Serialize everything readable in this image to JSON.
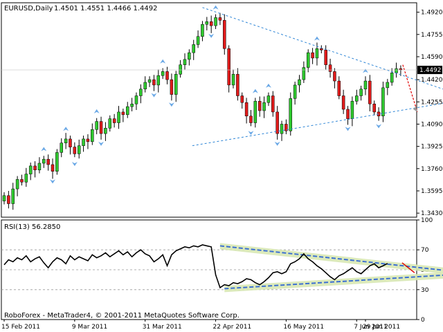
{
  "main_header": {
    "symbol_timeframe": "EURUSD,Daily",
    "ohlc": "1.4501 1.4551 1.4466 1.4492"
  },
  "rsi_header": "RSI(13) 56.2850",
  "copyright": "RoboForex - MetaTrader4, © 2001-2011 MetaQuotes Software Corp.",
  "colors": {
    "bull": "#2fc92f",
    "bear": "#e01b1b",
    "fractal": "#6aa8e6",
    "trend_line": "#2f86d6",
    "arrow": "#e00000",
    "rsi_line": "#000000",
    "rsi_channel_fill": "#d8e8b4",
    "rsi_channel_line": "#3b6fd2",
    "current_price_bg": "#000000",
    "current_price_text": "#ffffff"
  },
  "chart_data": [
    {
      "type": "candlestick",
      "title": "EURUSD,Daily",
      "current_price": "1.4492",
      "y_ticks": [
        "1.4920",
        "1.4755",
        "1.4590",
        "1.4420",
        "1.4255",
        "1.4090",
        "1.3925",
        "1.3760",
        "1.3595",
        "1.3430"
      ],
      "ylim": [
        1.34,
        1.499
      ],
      "x_ticks": [
        "15 Feb 2011",
        "9 Mar 2011",
        "31 Mar 2011",
        "22 Apr 2011",
        "16 May 2011",
        "7 Jun 2011",
        "29 Jun 2011"
      ],
      "close": [
        1.356,
        1.35,
        1.361,
        1.368,
        1.366,
        1.372,
        1.378,
        1.375,
        1.38,
        1.383,
        1.379,
        1.374,
        1.388,
        1.395,
        1.398,
        1.392,
        1.387,
        1.393,
        1.398,
        1.396,
        1.405,
        1.411,
        1.402,
        1.406,
        1.413,
        1.41,
        1.418,
        1.416,
        1.422,
        1.424,
        1.43,
        1.435,
        1.44,
        1.442,
        1.438,
        1.445,
        1.448,
        1.442,
        1.431,
        1.446,
        1.453,
        1.457,
        1.462,
        1.468,
        1.474,
        1.483,
        1.485,
        1.482,
        1.488,
        1.486,
        1.465,
        1.438,
        1.446,
        1.43,
        1.425,
        1.415,
        1.41,
        1.426,
        1.419,
        1.425,
        1.43,
        1.418,
        1.402,
        1.409,
        1.404,
        1.428,
        1.438,
        1.442,
        1.451,
        1.462,
        1.458,
        1.465,
        1.464,
        1.453,
        1.448,
        1.441,
        1.43,
        1.42,
        1.413,
        1.426,
        1.43,
        1.435,
        1.441,
        1.424,
        1.418,
        1.415,
        1.436,
        1.44,
        1.447,
        1.4501,
        1.4492
      ]
    },
    {
      "type": "line",
      "title": "RSI(13) 56.2850",
      "y_ticks": [
        "100",
        "70",
        "50",
        "30",
        "0"
      ],
      "ylim": [
        0,
        100
      ],
      "levels": [
        70,
        50,
        30
      ],
      "values": [
        55,
        60,
        58,
        62,
        60,
        64,
        58,
        61,
        63,
        57,
        52,
        58,
        62,
        60,
        56,
        64,
        60,
        63,
        61,
        59,
        65,
        62,
        64,
        67,
        63,
        66,
        69,
        65,
        68,
        63,
        67,
        70,
        66,
        64,
        58,
        61,
        65,
        54,
        65,
        69,
        71,
        73,
        72,
        74,
        73,
        75,
        74,
        73,
        45,
        32,
        35,
        34,
        37,
        36,
        38,
        41,
        40,
        37,
        35,
        38,
        42,
        47,
        48,
        46,
        48,
        56,
        58,
        61,
        66,
        61,
        58,
        54,
        51,
        47,
        43,
        40,
        44,
        46,
        49,
        52,
        48,
        46,
        50,
        54,
        56,
        52,
        54,
        56.285
      ],
      "channel": {
        "upper": [
          74,
          47
        ],
        "lower": [
          31,
          46
        ]
      }
    }
  ]
}
